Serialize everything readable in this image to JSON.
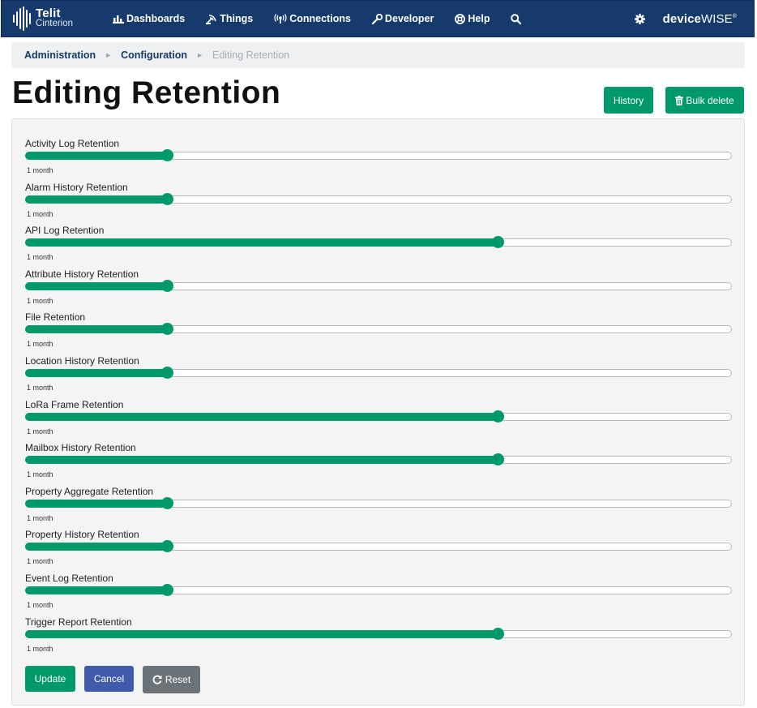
{
  "navbar": {
    "logo_line1": "Telit",
    "logo_line2": "Cinterion",
    "items": [
      {
        "label": "Dashboards",
        "icon": "bar-chart-icon"
      },
      {
        "label": "Things",
        "icon": "satellite-icon"
      },
      {
        "label": "Connections",
        "icon": "signal-icon"
      },
      {
        "label": "Developer",
        "icon": "wrench-icon"
      },
      {
        "label": "Help",
        "icon": "life-ring-icon"
      }
    ],
    "search_icon": "search-icon",
    "settings_icon": "gear-icon",
    "brand_bold": "device",
    "brand_rest": "WISE",
    "brand_mark": "®"
  },
  "breadcrumb": {
    "items": [
      "Administration",
      "Configuration",
      "Editing Retention"
    ],
    "separator": "►"
  },
  "page": {
    "title": "Editing Retention",
    "history_label": "History",
    "bulk_delete_label": "Bulk delete"
  },
  "sliders": [
    {
      "label": "Activity Log Retention",
      "value": "1 month",
      "fraction": 0.2
    },
    {
      "label": "Alarm History Retention",
      "value": "1 month",
      "fraction": 0.2
    },
    {
      "label": "API Log Retention",
      "value": "1 month",
      "fraction": 0.667
    },
    {
      "label": "Attribute History Retention",
      "value": "1 month",
      "fraction": 0.2
    },
    {
      "label": "File Retention",
      "value": "1 month",
      "fraction": 0.2
    },
    {
      "label": "Location History Retention",
      "value": "1 month",
      "fraction": 0.2
    },
    {
      "label": "LoRa Frame Retention",
      "value": "1 month",
      "fraction": 0.667
    },
    {
      "label": "Mailbox History Retention",
      "value": "1 month",
      "fraction": 0.667
    },
    {
      "label": "Property Aggregate Retention",
      "value": "1 month",
      "fraction": 0.2
    },
    {
      "label": "Property History Retention",
      "value": "1 month",
      "fraction": 0.2
    },
    {
      "label": "Event Log Retention",
      "value": "1 month",
      "fraction": 0.2
    },
    {
      "label": "Trigger Report Retention",
      "value": "1 month",
      "fraction": 0.667
    }
  ],
  "actions": {
    "update_label": "Update",
    "cancel_label": "Cancel",
    "reset_label": "Reset"
  },
  "colors": {
    "navbar": "#163a6b",
    "primary_green": "#00996b",
    "cancel_blue": "#3f5ba9",
    "reset_gray": "#6c7378"
  }
}
